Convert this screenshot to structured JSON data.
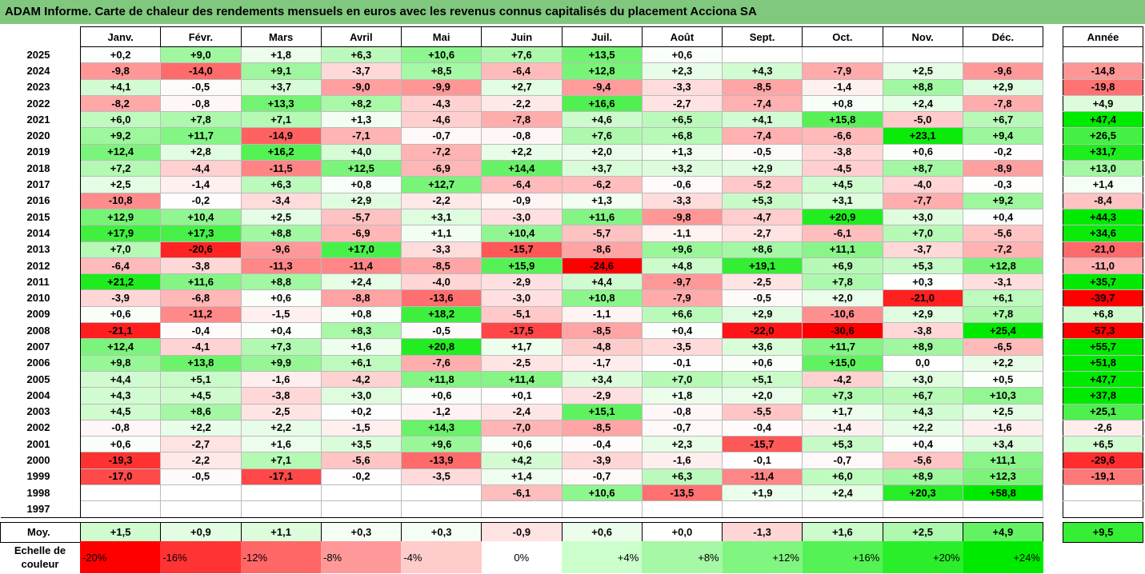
{
  "title": "ADAM Informe. Carte de chaleur des rendements mensuels en euros avec les revenus connus capitalisés du placement Acciona SA",
  "months": [
    "Janv.",
    "Févr.",
    "Mars",
    "Avril",
    "Mai",
    "Juin",
    "Juil.",
    "Août",
    "Sept.",
    "Oct.",
    "Nov.",
    "Déc."
  ],
  "year_header": "Année",
  "avg_label": "Moy.",
  "scale_label": "Echelle de couleur",
  "chart_data": {
    "type": "heatmap",
    "rows": [
      {
        "year": "2025",
        "m": [
          "+0,2",
          "+9,0",
          "+1,8",
          "+6,3",
          "+10,6",
          "+7,6",
          "+13,5",
          "+0,6",
          "",
          "",
          "",
          ""
        ],
        "y": ""
      },
      {
        "year": "2024",
        "m": [
          "-9,8",
          "-14,0",
          "+9,1",
          "-3,7",
          "+8,5",
          "-6,4",
          "+12,8",
          "+2,3",
          "+4,3",
          "-7,9",
          "+2,5",
          "-9,6"
        ],
        "y": "-14,8"
      },
      {
        "year": "2023",
        "m": [
          "+4,1",
          "-0,5",
          "+3,7",
          "-9,0",
          "-9,9",
          "+2,7",
          "-9,4",
          "-3,3",
          "-8,5",
          "-1,4",
          "+8,8",
          "+2,9"
        ],
        "y": "-19,8"
      },
      {
        "year": "2022",
        "m": [
          "-8,2",
          "-0,8",
          "+13,3",
          "+8,2",
          "-4,3",
          "-2,2",
          "+16,6",
          "-2,7",
          "-7,4",
          "+0,8",
          "+2,4",
          "-7,8"
        ],
        "y": "+4,9"
      },
      {
        "year": "2021",
        "m": [
          "+6,0",
          "+7,8",
          "+7,1",
          "+1,3",
          "-4,6",
          "-7,8",
          "+4,6",
          "+6,5",
          "+4,1",
          "+15,8",
          "-5,0",
          "+6,7"
        ],
        "y": "+47,4"
      },
      {
        "year": "2020",
        "m": [
          "+9,2",
          "+11,7",
          "-14,9",
          "-7,1",
          "-0,7",
          "-0,8",
          "+7,6",
          "+6,8",
          "-7,4",
          "-6,6",
          "+23,1",
          "+9,4"
        ],
        "y": "+26,5"
      },
      {
        "year": "2019",
        "m": [
          "+12,4",
          "+2,8",
          "+16,2",
          "+4,0",
          "-7,2",
          "+2,2",
          "+2,0",
          "+1,3",
          "-0,5",
          "-3,8",
          "+0,6",
          "-0,2"
        ],
        "y": "+31,7"
      },
      {
        "year": "2018",
        "m": [
          "+7,2",
          "-4,4",
          "-11,5",
          "+12,5",
          "-6,9",
          "+14,4",
          "+3,7",
          "+3,2",
          "+2,9",
          "-4,5",
          "+8,7",
          "-8,9"
        ],
        "y": "+13,0"
      },
      {
        "year": "2017",
        "m": [
          "+2,5",
          "-1,4",
          "+6,3",
          "+0,8",
          "+12,7",
          "-6,4",
          "-6,2",
          "-0,6",
          "-5,2",
          "+4,5",
          "-4,0",
          "-0,3"
        ],
        "y": "+1,4"
      },
      {
        "year": "2016",
        "m": [
          "-10,8",
          "-0,2",
          "-3,4",
          "+2,9",
          "-2,2",
          "-0,9",
          "+1,3",
          "-3,3",
          "+5,3",
          "+3,1",
          "-7,7",
          "+9,2"
        ],
        "y": "-8,4"
      },
      {
        "year": "2015",
        "m": [
          "+12,9",
          "+10,4",
          "+2,5",
          "-5,7",
          "+3,1",
          "-3,0",
          "+11,6",
          "-9,8",
          "-4,7",
          "+20,9",
          "+3,0",
          "+0,4"
        ],
        "y": "+44,3"
      },
      {
        "year": "2014",
        "m": [
          "+17,9",
          "+17,3",
          "+8,8",
          "-6,9",
          "+1,1",
          "+10,4",
          "-5,7",
          "-1,1",
          "-2,7",
          "-6,1",
          "+7,0",
          "-5,6"
        ],
        "y": "+34,6"
      },
      {
        "year": "2013",
        "m": [
          "+7,0",
          "-20,6",
          "-9,6",
          "+17,0",
          "-3,3",
          "-15,7",
          "-8,6",
          "+9,6",
          "+8,6",
          "+11,1",
          "-3,7",
          "-7,2"
        ],
        "y": "-21,0"
      },
      {
        "year": "2012",
        "m": [
          "-6,4",
          "-3,8",
          "-11,3",
          "-11,4",
          "-8,5",
          "+15,9",
          "-24,6",
          "+4,8",
          "+19,1",
          "+6,9",
          "+5,3",
          "+12,8"
        ],
        "y": "-11,0"
      },
      {
        "year": "2011",
        "m": [
          "+21,2",
          "+11,6",
          "+8,8",
          "+2,4",
          "-4,0",
          "-2,9",
          "+4,4",
          "-9,7",
          "-2,5",
          "+7,8",
          "+0,3",
          "-3,1"
        ],
        "y": "+35,7"
      },
      {
        "year": "2010",
        "m": [
          "-3,9",
          "-6,8",
          "+0,6",
          "-8,8",
          "-13,6",
          "-3,0",
          "+10,8",
          "-7,9",
          "-0,5",
          "+2,0",
          "-21,0",
          "+6,1"
        ],
        "y": "-39,7"
      },
      {
        "year": "2009",
        "m": [
          "+0,6",
          "-11,2",
          "-1,5",
          "+0,8",
          "+18,2",
          "-5,1",
          "-1,1",
          "+6,6",
          "+2,9",
          "-10,6",
          "+2,9",
          "+7,8"
        ],
        "y": "+6,8"
      },
      {
        "year": "2008",
        "m": [
          "-21,1",
          "-0,4",
          "+0,4",
          "+8,3",
          "-0,5",
          "-17,5",
          "-8,5",
          "+0,4",
          "-22,0",
          "-30,6",
          "-3,8",
          "+25,4"
        ],
        "y": "-57,3"
      },
      {
        "year": "2007",
        "m": [
          "+12,4",
          "-4,1",
          "+7,3",
          "+1,6",
          "+20,8",
          "+1,7",
          "-4,8",
          "-3,5",
          "+3,6",
          "+11,7",
          "+8,9",
          "-6,5"
        ],
        "y": "+55,7"
      },
      {
        "year": "2006",
        "m": [
          "+9,8",
          "+13,8",
          "+9,9",
          "+6,1",
          "-7,6",
          "-2,5",
          "-1,7",
          "-0,1",
          "+0,6",
          "+15,0",
          "0,0",
          "+2,2"
        ],
        "y": "+51,8"
      },
      {
        "year": "2005",
        "m": [
          "+4,4",
          "+5,1",
          "-1,6",
          "-4,2",
          "+11,8",
          "+11,4",
          "+3,4",
          "+7,0",
          "+5,1",
          "-4,2",
          "+3,0",
          "+0,5"
        ],
        "y": "+47,7"
      },
      {
        "year": "2004",
        "m": [
          "+4,3",
          "+4,5",
          "-3,8",
          "+3,0",
          "+0,6",
          "+0,1",
          "-2,9",
          "+1,8",
          "+2,0",
          "+7,3",
          "+6,7",
          "+10,3"
        ],
        "y": "+37,8"
      },
      {
        "year": "2003",
        "m": [
          "+4,5",
          "+8,6",
          "-2,5",
          "+0,2",
          "-1,2",
          "-2,4",
          "+15,1",
          "-0,8",
          "-5,5",
          "+1,7",
          "+4,3",
          "+2,5"
        ],
        "y": "+25,1"
      },
      {
        "year": "2002",
        "m": [
          "-0,8",
          "+2,2",
          "+2,2",
          "-1,5",
          "+14,3",
          "-7,0",
          "-8,5",
          "-0,7",
          "-0,4",
          "-1,4",
          "+2,2",
          "-1,6"
        ],
        "y": "-2,6"
      },
      {
        "year": "2001",
        "m": [
          "+0,6",
          "-2,7",
          "+1,6",
          "+3,5",
          "+9,6",
          "+0,6",
          "-0,4",
          "+2,3",
          "-15,7",
          "+5,3",
          "+0,4",
          "+3,4"
        ],
        "y": "+6,5"
      },
      {
        "year": "2000",
        "m": [
          "-19,3",
          "-2,2",
          "+7,1",
          "-5,6",
          "-13,9",
          "+4,2",
          "-3,9",
          "-1,6",
          "-0,1",
          "-0,7",
          "-5,6",
          "+11,1"
        ],
        "y": "-29,6"
      },
      {
        "year": "1999",
        "m": [
          "-17,0",
          "-0,5",
          "-17,1",
          "-0,2",
          "-3,5",
          "+1,4",
          "-0,7",
          "+6,3",
          "-11,4",
          "+6,0",
          "+8,9",
          "+12,3"
        ],
        "y": "-19,1"
      },
      {
        "year": "1998",
        "m": [
          "",
          "",
          "",
          "",
          "",
          "-6,1",
          "+10,6",
          "-13,5",
          "+1,9",
          "+2,4",
          "+20,3",
          "+58,8"
        ],
        "y": ""
      },
      {
        "year": "1997",
        "m": [
          "",
          "",
          "",
          "",
          "",
          "",
          "",
          "",
          "",
          "",
          "",
          ""
        ],
        "y": ""
      }
    ],
    "average": {
      "m": [
        "+1,5",
        "+0,9",
        "+1,1",
        "+0,3",
        "+0,3",
        "-0,9",
        "+0,6",
        "+0,0",
        "-1,3",
        "+1,6",
        "+2,5",
        "+4,9"
      ],
      "y": "+9,5"
    },
    "color_scale": [
      {
        "label": "-20%",
        "value": -20,
        "color": "#ff0000"
      },
      {
        "label": "-16%",
        "value": -16,
        "color": "#ff3333"
      },
      {
        "label": "-12%",
        "value": -12,
        "color": "#ff6666"
      },
      {
        "label": "-8%",
        "value": -8,
        "color": "#ff9999"
      },
      {
        "label": "-4%",
        "value": -4,
        "color": "#ffcccc"
      },
      {
        "label": "0%",
        "value": 0,
        "color": "#ffffff"
      },
      {
        "label": "+4%",
        "value": 4,
        "color": "#ccffcc"
      },
      {
        "label": "+8%",
        "value": 8,
        "color": "#a6f7a6"
      },
      {
        "label": "+12%",
        "value": 12,
        "color": "#80f580"
      },
      {
        "label": "+16%",
        "value": 16,
        "color": "#55f255"
      },
      {
        "label": "+20%",
        "value": 20,
        "color": "#2bee2b"
      },
      {
        "label": "+24%",
        "value": 24,
        "color": "#00ea00"
      }
    ]
  }
}
